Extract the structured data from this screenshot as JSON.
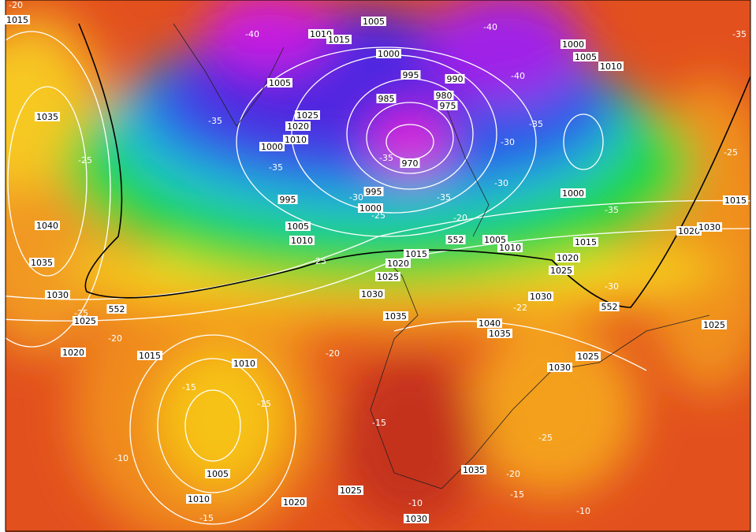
{
  "isobar_labels": [
    "1015",
    "1005",
    "1010",
    "1015",
    "1000",
    "1000",
    "1005",
    "1010",
    "995",
    "990",
    "985",
    "980",
    "975",
    "1005",
    "1025",
    "1020",
    "1010",
    "1000",
    "970",
    "995",
    "1000",
    "995",
    "1005",
    "1010",
    "1035",
    "1040",
    "1035",
    "1030",
    "1025",
    "1020",
    "1015",
    "1010",
    "1005",
    "1010",
    "1020",
    "1025",
    "1030",
    "1035",
    "1030",
    "1025",
    "1035",
    "1040",
    "1030",
    "1025",
    "1020",
    "1015",
    "1010",
    "1005",
    "1000",
    "1015",
    "1020",
    "1030",
    "1025",
    "1015",
    "1020",
    "1025",
    "1030",
    "1035"
  ],
  "temperature_labels": [
    "-20",
    "-40",
    "-40",
    "-35",
    "-40",
    "-35",
    "-35",
    "-30",
    "-35",
    "-35",
    "-30",
    "-35",
    "-30",
    "-25",
    "-20",
    "-35",
    "-25",
    "-25",
    "-25",
    "-30",
    "-25",
    "-22",
    "-20",
    "-20",
    "-15",
    "-15",
    "-15",
    "-10",
    "-15",
    "-10",
    "-15",
    "-20",
    "-25",
    "-10"
  ],
  "thickness_labels": [
    "552",
    "552",
    "552"
  ]
}
